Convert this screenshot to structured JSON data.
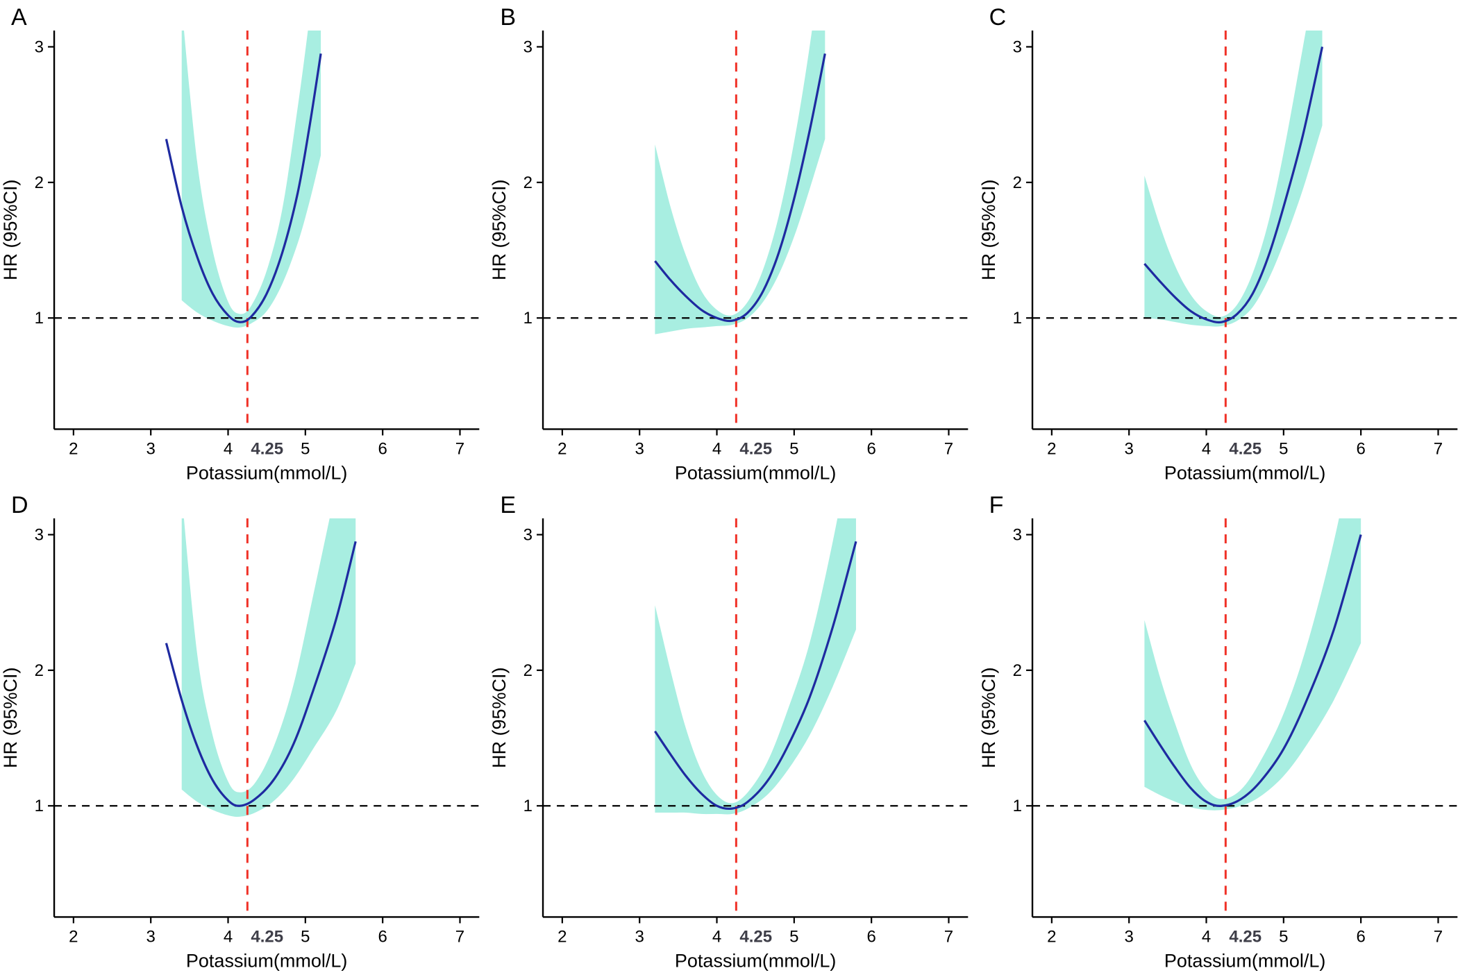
{
  "colors": {
    "curve": "#1e2aa0",
    "ci_band": "#a8eee1",
    "ref_line": "#f03228",
    "ref_x_label": "#3e3e48",
    "axis": "#000000"
  },
  "chart_data": [
    {
      "type": "line",
      "label": "A",
      "xlabel": "Potassium(mmol/L)",
      "ylabel": "HR (95%CI)",
      "x_ticks": [
        2,
        3,
        4,
        5,
        6,
        7
      ],
      "y_ticks": [
        1,
        2,
        3
      ],
      "xlim": [
        1.75,
        7.25
      ],
      "ylim": [
        0.18,
        3.12
      ],
      "ref_line_x": 4.25,
      "ref_line_x_label": "4.25",
      "ref_line_y": 1,
      "series": [
        {
          "name": "HR",
          "x": [
            3.2,
            3.4,
            3.6,
            3.8,
            4.0,
            4.15,
            4.3,
            4.5,
            4.7,
            4.9,
            5.05,
            5.2
          ],
          "y": [
            2.32,
            1.82,
            1.45,
            1.18,
            1.02,
            0.97,
            1.01,
            1.18,
            1.48,
            1.92,
            2.4,
            2.95
          ]
        }
      ],
      "ci_band": {
        "x": [
          3.4,
          3.6,
          3.8,
          4.0,
          4.15,
          4.3,
          4.5,
          4.7,
          4.9,
          5.05,
          5.2
        ],
        "lower": [
          1.13,
          1.04,
          0.98,
          0.94,
          0.93,
          0.96,
          1.05,
          1.25,
          1.55,
          1.85,
          2.2
        ],
        "upper": [
          3.3,
          2.15,
          1.5,
          1.12,
          1.03,
          1.09,
          1.35,
          1.8,
          2.55,
          3.2,
          3.95
        ]
      }
    },
    {
      "type": "line",
      "label": "B",
      "xlabel": "Potassium(mmol/L)",
      "ylabel": "HR (95%CI)",
      "x_ticks": [
        2,
        3,
        4,
        5,
        6,
        7
      ],
      "y_ticks": [
        1,
        2,
        3
      ],
      "xlim": [
        1.75,
        7.25
      ],
      "ylim": [
        0.18,
        3.12
      ],
      "ref_line_x": 4.25,
      "ref_line_x_label": "4.25",
      "ref_line_y": 1,
      "series": [
        {
          "name": "HR",
          "x": [
            3.2,
            3.4,
            3.6,
            3.8,
            4.0,
            4.2,
            4.4,
            4.6,
            4.8,
            5.0,
            5.2,
            5.4
          ],
          "y": [
            1.42,
            1.28,
            1.16,
            1.06,
            1.0,
            0.98,
            1.04,
            1.2,
            1.48,
            1.88,
            2.38,
            2.95
          ]
        }
      ],
      "ci_band": {
        "x": [
          3.2,
          3.4,
          3.6,
          3.8,
          4.0,
          4.2,
          4.4,
          4.6,
          4.8,
          5.0,
          5.2,
          5.4
        ],
        "lower": [
          0.88,
          0.9,
          0.92,
          0.93,
          0.94,
          0.95,
          1.0,
          1.12,
          1.32,
          1.6,
          1.95,
          2.32
        ],
        "upper": [
          2.28,
          1.82,
          1.46,
          1.2,
          1.06,
          1.02,
          1.12,
          1.36,
          1.75,
          2.3,
          3.0,
          3.85
        ]
      }
    },
    {
      "type": "line",
      "label": "C",
      "xlabel": "Potassium(mmol/L)",
      "ylabel": "HR (95%CI)",
      "x_ticks": [
        2,
        3,
        4,
        5,
        6,
        7
      ],
      "y_ticks": [
        1,
        2,
        3
      ],
      "xlim": [
        1.75,
        7.25
      ],
      "ylim": [
        0.18,
        3.12
      ],
      "ref_line_x": 4.25,
      "ref_line_x_label": "4.25",
      "ref_line_y": 1,
      "series": [
        {
          "name": "HR",
          "x": [
            3.2,
            3.4,
            3.6,
            3.8,
            4.0,
            4.2,
            4.4,
            4.6,
            4.8,
            5.0,
            5.25,
            5.5
          ],
          "y": [
            1.4,
            1.27,
            1.15,
            1.05,
            0.99,
            0.97,
            1.03,
            1.18,
            1.45,
            1.82,
            2.35,
            3.0
          ]
        }
      ],
      "ci_band": {
        "x": [
          3.2,
          3.4,
          3.6,
          3.8,
          4.0,
          4.2,
          4.4,
          4.6,
          4.8,
          5.0,
          5.25,
          5.5
        ],
        "lower": [
          1.0,
          0.99,
          0.97,
          0.95,
          0.94,
          0.94,
          0.98,
          1.08,
          1.28,
          1.55,
          1.95,
          2.42
        ],
        "upper": [
          2.05,
          1.68,
          1.38,
          1.17,
          1.05,
          1.01,
          1.1,
          1.33,
          1.7,
          2.22,
          3.0,
          3.8
        ]
      }
    },
    {
      "type": "line",
      "label": "D",
      "xlabel": "Potassium(mmol/L)",
      "ylabel": "HR (95%CI)",
      "x_ticks": [
        2,
        3,
        4,
        5,
        6,
        7
      ],
      "y_ticks": [
        1,
        2,
        3
      ],
      "xlim": [
        1.75,
        7.25
      ],
      "ylim": [
        0.18,
        3.12
      ],
      "ref_line_x": 4.25,
      "ref_line_x_label": "4.25",
      "ref_line_y": 1,
      "series": [
        {
          "name": "HR",
          "x": [
            3.2,
            3.4,
            3.6,
            3.8,
            4.0,
            4.15,
            4.35,
            4.6,
            4.85,
            5.1,
            5.4,
            5.65
          ],
          "y": [
            2.2,
            1.78,
            1.44,
            1.19,
            1.04,
            1.0,
            1.05,
            1.2,
            1.46,
            1.85,
            2.38,
            2.95
          ]
        }
      ],
      "ci_band": {
        "x": [
          3.4,
          3.6,
          3.8,
          4.0,
          4.15,
          4.35,
          4.6,
          4.85,
          5.1,
          5.4,
          5.65
        ],
        "lower": [
          1.12,
          1.03,
          0.97,
          0.93,
          0.92,
          0.95,
          1.04,
          1.2,
          1.42,
          1.7,
          2.05
        ],
        "upper": [
          3.3,
          2.12,
          1.52,
          1.18,
          1.1,
          1.17,
          1.45,
          1.9,
          2.55,
          3.35,
          4.0
        ]
      }
    },
    {
      "type": "line",
      "label": "E",
      "xlabel": "Potassium(mmol/L)",
      "ylabel": "HR (95%CI)",
      "x_ticks": [
        2,
        3,
        4,
        5,
        6,
        7
      ],
      "y_ticks": [
        1,
        2,
        3
      ],
      "xlim": [
        1.75,
        7.25
      ],
      "ylim": [
        0.18,
        3.12
      ],
      "ref_line_x": 4.25,
      "ref_line_x_label": "4.25",
      "ref_line_y": 1,
      "series": [
        {
          "name": "HR",
          "x": [
            3.2,
            3.4,
            3.6,
            3.8,
            4.0,
            4.2,
            4.4,
            4.65,
            4.9,
            5.2,
            5.5,
            5.8
          ],
          "y": [
            1.55,
            1.38,
            1.22,
            1.09,
            1.0,
            0.98,
            1.03,
            1.18,
            1.42,
            1.8,
            2.32,
            2.95
          ]
        }
      ],
      "ci_band": {
        "x": [
          3.2,
          3.4,
          3.6,
          3.8,
          4.0,
          4.2,
          4.4,
          4.65,
          4.9,
          5.2,
          5.5,
          5.8
        ],
        "lower": [
          0.95,
          0.95,
          0.95,
          0.94,
          0.94,
          0.94,
          0.98,
          1.08,
          1.25,
          1.52,
          1.88,
          2.3
        ],
        "upper": [
          2.48,
          2.0,
          1.57,
          1.26,
          1.08,
          1.02,
          1.1,
          1.32,
          1.68,
          2.2,
          2.95,
          3.85
        ]
      }
    },
    {
      "type": "line",
      "label": "F",
      "xlabel": "Potassium(mmol/L)",
      "ylabel": "HR (95%CI)",
      "x_ticks": [
        2,
        3,
        4,
        5,
        6,
        7
      ],
      "y_ticks": [
        1,
        2,
        3
      ],
      "xlim": [
        1.75,
        7.25
      ],
      "ylim": [
        0.18,
        3.12
      ],
      "ref_line_x": 4.25,
      "ref_line_x_label": "4.25",
      "ref_line_y": 1,
      "series": [
        {
          "name": "HR",
          "x": [
            3.2,
            3.4,
            3.6,
            3.8,
            4.0,
            4.2,
            4.45,
            4.7,
            5.0,
            5.3,
            5.65,
            6.0
          ],
          "y": [
            1.63,
            1.45,
            1.28,
            1.13,
            1.03,
            1.0,
            1.05,
            1.18,
            1.42,
            1.78,
            2.3,
            3.0
          ]
        }
      ],
      "ci_band": {
        "x": [
          3.2,
          3.4,
          3.6,
          3.8,
          4.0,
          4.2,
          4.45,
          4.7,
          5.0,
          5.3,
          5.65,
          6.0
        ],
        "lower": [
          1.14,
          1.08,
          1.03,
          0.99,
          0.97,
          0.97,
          1.0,
          1.07,
          1.22,
          1.45,
          1.78,
          2.2
        ],
        "upper": [
          2.37,
          1.95,
          1.6,
          1.3,
          1.12,
          1.05,
          1.12,
          1.33,
          1.68,
          2.18,
          2.95,
          3.9
        ]
      }
    }
  ]
}
